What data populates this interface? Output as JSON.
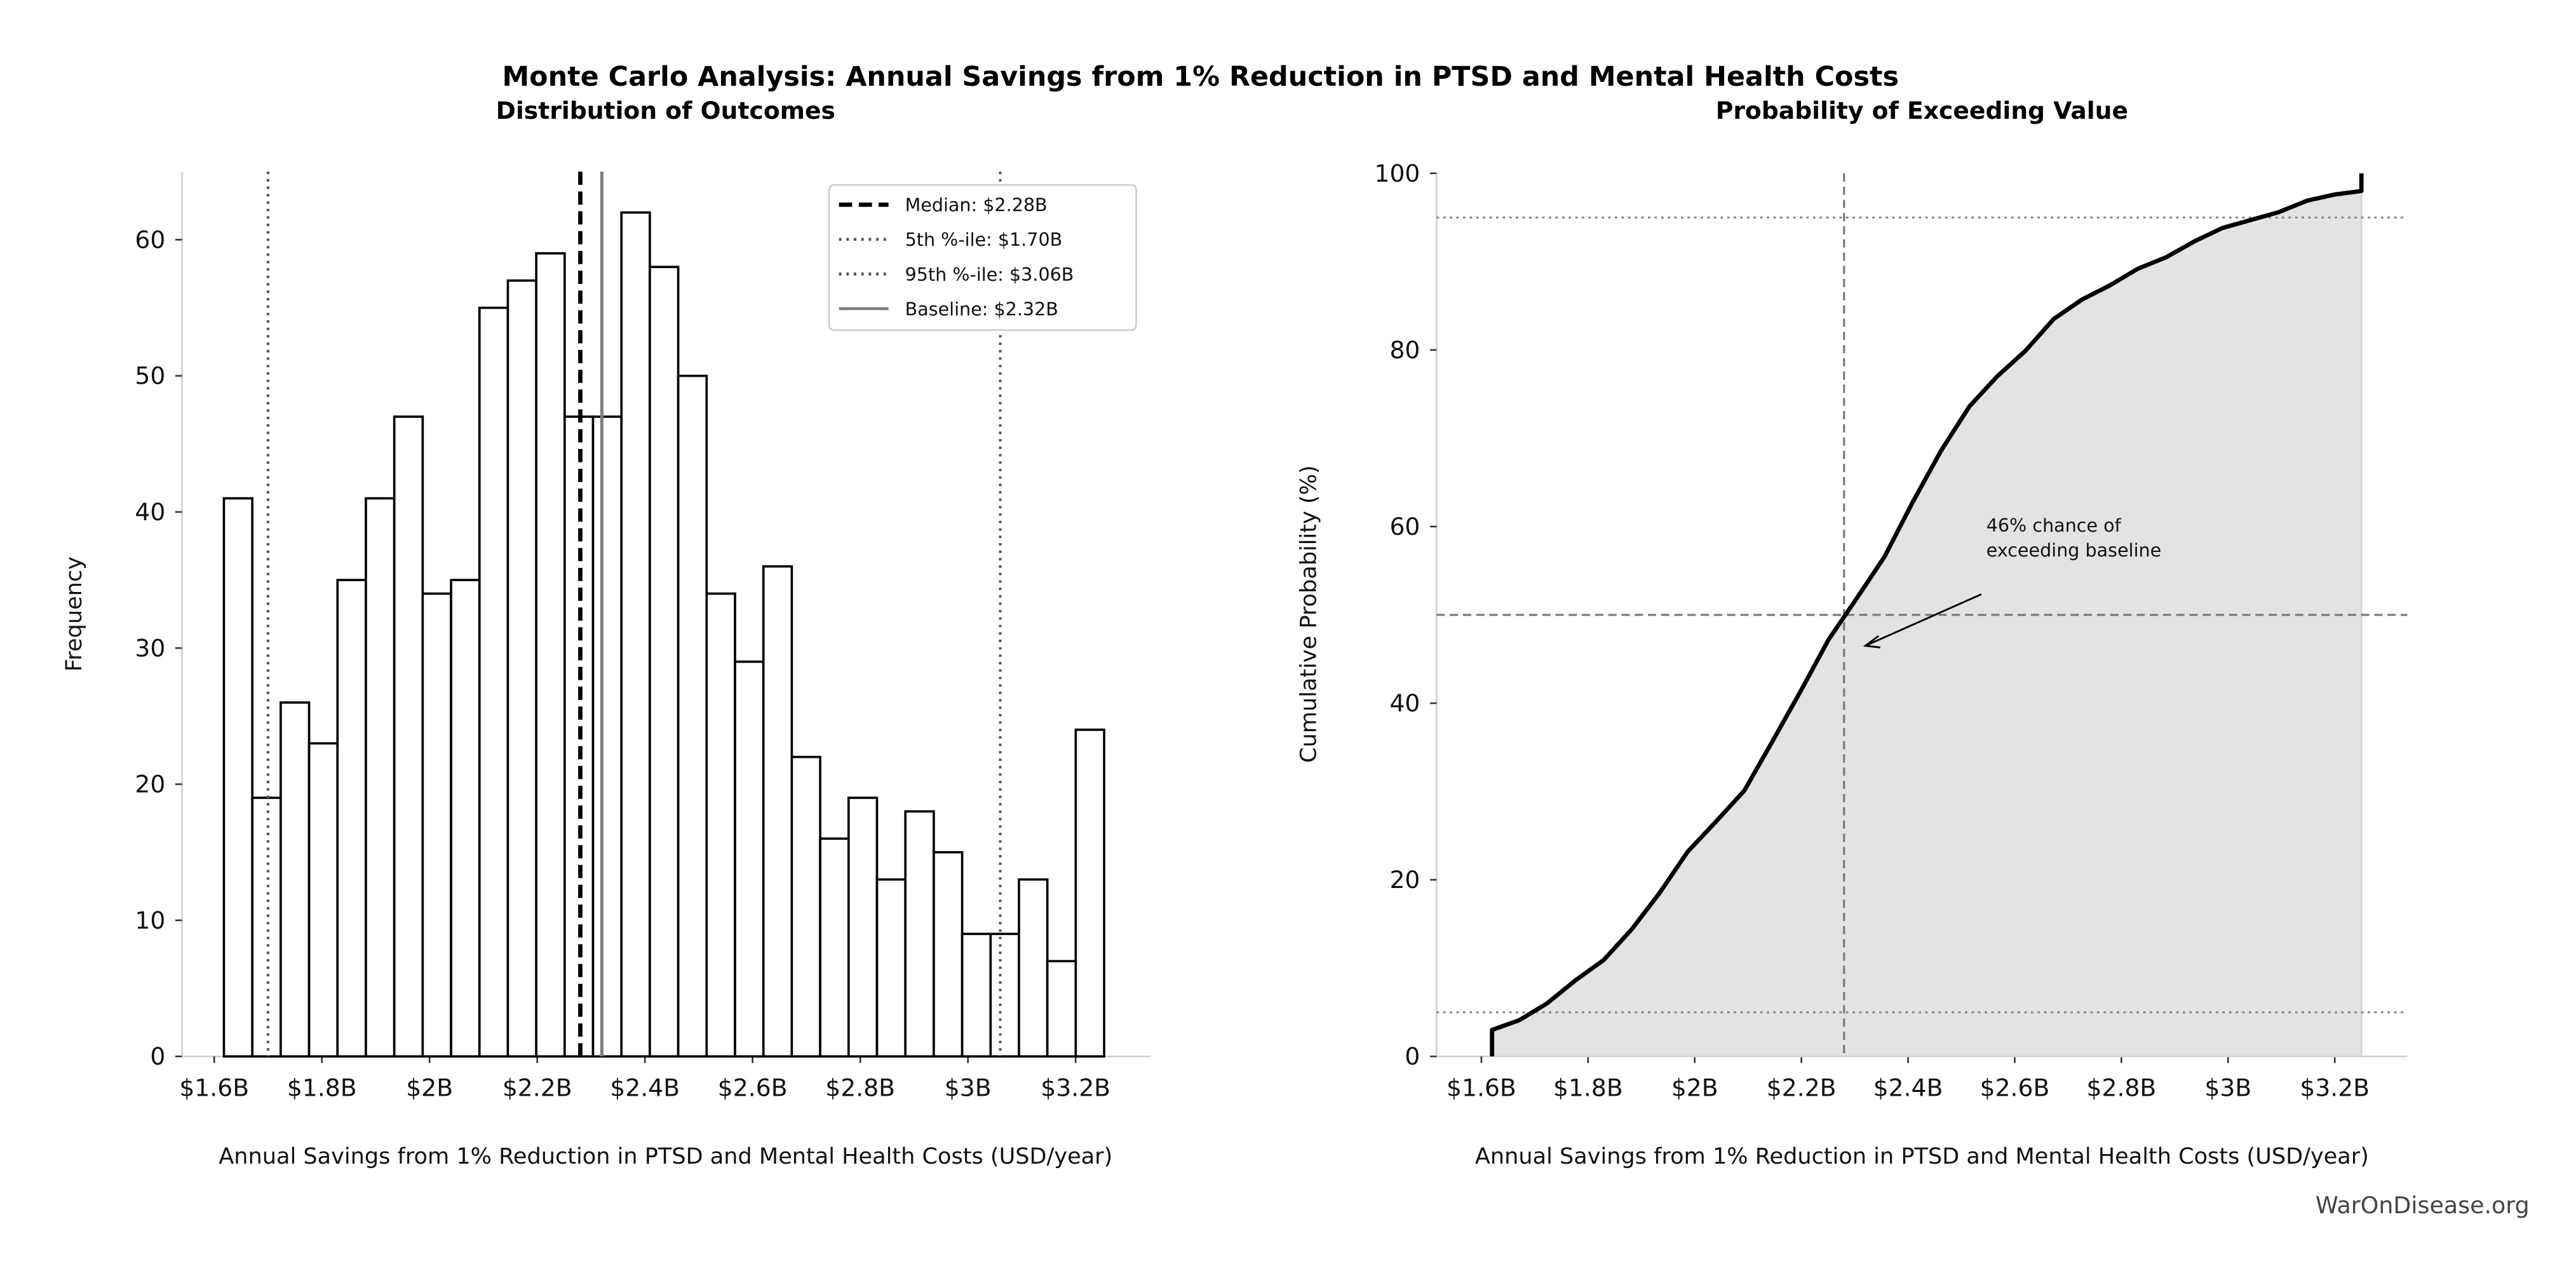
{
  "title": "Monte Carlo Analysis: Annual Savings from 1% Reduction in PTSD and Mental Health Costs",
  "watermark": "WarOnDisease.org",
  "chart_data": [
    {
      "type": "bar",
      "title": "Distribution of Outcomes",
      "xlabel": "Annual Savings from 1% Reduction in PTSD and Mental Health Costs (USD/year)",
      "ylabel": "Frequency",
      "x_ticks": [
        1.6,
        1.8,
        2.0,
        2.2,
        2.4,
        2.6,
        2.8,
        3.0,
        3.2
      ],
      "x_tick_labels": [
        "$1.6B",
        "$1.8B",
        "$2B",
        "$2.2B",
        "$2.4B",
        "$2.6B",
        "$2.8B",
        "$3B",
        "$3.2B"
      ],
      "y_ticks": [
        0,
        10,
        20,
        30,
        40,
        50,
        60
      ],
      "y_tick_labels": [
        "0",
        "10",
        "20",
        "30",
        "40",
        "50",
        "60"
      ],
      "xlim": [
        1.54,
        3.34
      ],
      "ylim": [
        0,
        65
      ],
      "bin_start": 1.618,
      "bin_end": 3.253,
      "values": [
        41,
        19,
        26,
        23,
        35,
        41,
        47,
        34,
        35,
        55,
        57,
        59,
        47,
        47,
        62,
        58,
        50,
        34,
        29,
        36,
        22,
        16,
        19,
        13,
        18,
        15,
        9,
        9,
        13,
        7,
        24
      ],
      "bar_color": "#ffffff",
      "edge_color": "#000000",
      "grid": false,
      "legend_position": "top-right",
      "reference_lines": [
        {
          "label": "Median: $2.28B",
          "x": 2.28,
          "style": "dashed",
          "color": "#000000"
        },
        {
          "label": "5th %-ile: $1.70B",
          "x": 1.7,
          "style": "dotted",
          "color": "#555555"
        },
        {
          "label": "95th %-ile: $3.06B",
          "x": 3.06,
          "style": "dotted",
          "color": "#555555"
        },
        {
          "label": "Baseline: $2.32B",
          "x": 2.32,
          "style": "solid",
          "color": "#808080"
        }
      ]
    },
    {
      "type": "area",
      "title": "Probability of Exceeding Value",
      "xlabel": "Annual Savings from 1% Reduction in PTSD and Mental Health Costs (USD/year)",
      "ylabel": "Cumulative Probability (%)",
      "x_ticks": [
        1.6,
        1.8,
        2.0,
        2.2,
        2.4,
        2.6,
        2.8,
        3.0,
        3.2
      ],
      "x_tick_labels": [
        "$1.6B",
        "$1.8B",
        "$2B",
        "$2.2B",
        "$2.4B",
        "$2.6B",
        "$2.8B",
        "$3B",
        "$3.2B"
      ],
      "y_ticks": [
        0,
        20,
        40,
        60,
        80,
        100
      ],
      "y_tick_labels": [
        "0",
        "20",
        "40",
        "60",
        "80",
        "100"
      ],
      "xlim": [
        1.516,
        3.336
      ],
      "ylim": [
        0,
        100
      ],
      "grid": false,
      "fill_color": "#e3e3e3",
      "line_color": "#000000",
      "x": [
        1.62,
        1.62,
        1.671,
        1.723,
        1.776,
        1.829,
        1.882,
        1.934,
        1.987,
        2.04,
        2.093,
        2.145,
        2.198,
        2.251,
        2.304,
        2.356,
        2.409,
        2.462,
        2.515,
        2.567,
        2.62,
        2.673,
        2.726,
        2.778,
        2.831,
        2.884,
        2.937,
        2.989,
        3.042,
        3.095,
        3.148,
        3.2,
        3.25,
        3.25
      ],
      "y": [
        0,
        3,
        4.1,
        6.0,
        8.6,
        10.9,
        14.4,
        18.5,
        23.2,
        26.6,
        30.1,
        35.6,
        41.3,
        47.2,
        51.9,
        56.6,
        62.8,
        68.6,
        73.6,
        77.0,
        79.9,
        83.5,
        85.7,
        87.3,
        89.2,
        90.5,
        92.3,
        93.8,
        94.7,
        95.6,
        96.9,
        97.6,
        98.0,
        100
      ],
      "reference_lines": [
        {
          "axis": "x",
          "value": 2.28,
          "style": "dashed",
          "color": "#777777"
        },
        {
          "axis": "y",
          "value": 50,
          "style": "dashed",
          "color": "#777777"
        },
        {
          "axis": "y",
          "value": 5,
          "style": "dotted",
          "color": "#888888"
        },
        {
          "axis": "y",
          "value": 95,
          "style": "dotted",
          "color": "#888888"
        }
      ],
      "annotation": {
        "lines": [
          "46% chance of",
          "exceeding baseline"
        ],
        "arrow_target": [
          2.32,
          46.5
        ]
      }
    }
  ]
}
